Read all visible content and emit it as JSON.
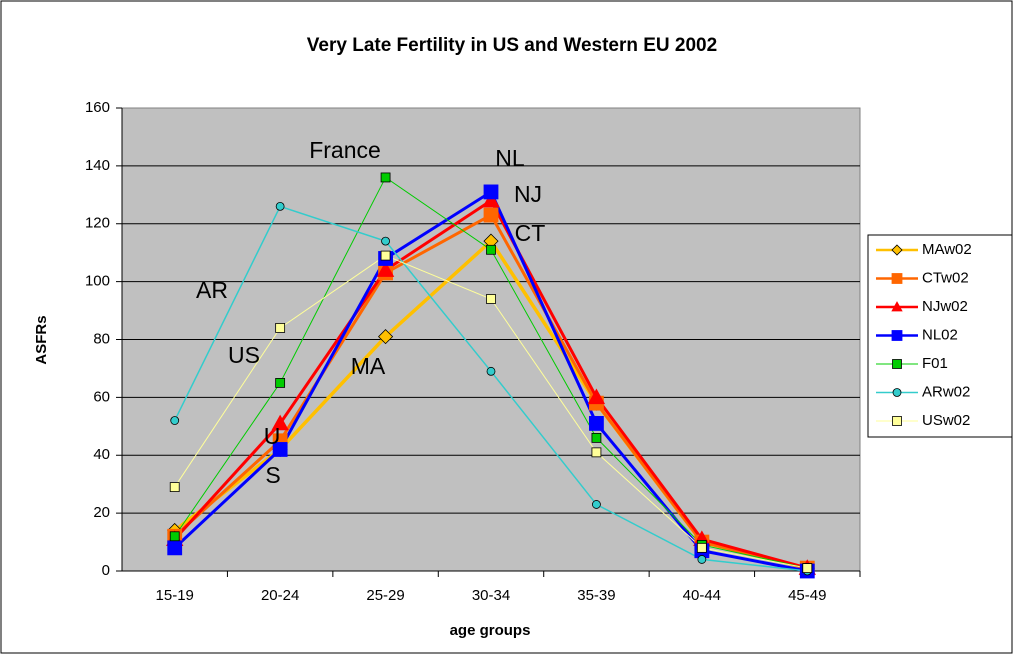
{
  "chart_data": {
    "type": "line",
    "title": "Very Late Fertility in US and Western EU 2002",
    "xlabel": "age groups",
    "ylabel": "ASFRs",
    "categories": [
      "15-19",
      "20-24",
      "25-29",
      "30-34",
      "35-39",
      "40-44",
      "45-49"
    ],
    "series": [
      {
        "name": "MAw02",
        "color": "#FFC000",
        "marker": "diamond",
        "values": [
          14,
          42,
          81,
          114,
          58,
          10,
          1
        ]
      },
      {
        "name": "CTw02",
        "color": "#FF6600",
        "marker": "square",
        "values": [
          12,
          45,
          103,
          123,
          58,
          10,
          1
        ]
      },
      {
        "name": "NJw02",
        "color": "#FF0000",
        "marker": "triangle",
        "values": [
          11,
          51,
          104,
          128,
          60,
          11,
          1
        ]
      },
      {
        "name": "NL02",
        "color": "#0000FF",
        "marker": "square",
        "values": [
          8,
          42,
          108,
          131,
          51,
          7,
          0
        ]
      },
      {
        "name": "F01",
        "color": "#00CC00",
        "marker": "square",
        "values": [
          12,
          65,
          136,
          111,
          46,
          9,
          1
        ]
      },
      {
        "name": "ARw02",
        "color": "#33CCCC",
        "marker": "circle",
        "values": [
          52,
          126,
          114,
          69,
          23,
          4,
          0
        ]
      },
      {
        "name": "USw02",
        "color": "#FFFF99",
        "marker": "square",
        "values": [
          29,
          84,
          109,
          94,
          41,
          8,
          1
        ]
      }
    ],
    "annotations": [
      "France",
      "NL",
      "NJ",
      "CT",
      "AR",
      "US",
      "MA",
      "U",
      "S"
    ],
    "ylim": [
      0,
      160
    ],
    "yticks": [
      0,
      20,
      40,
      60,
      80,
      100,
      120,
      140,
      160
    ],
    "grid": true,
    "legend": "right"
  }
}
